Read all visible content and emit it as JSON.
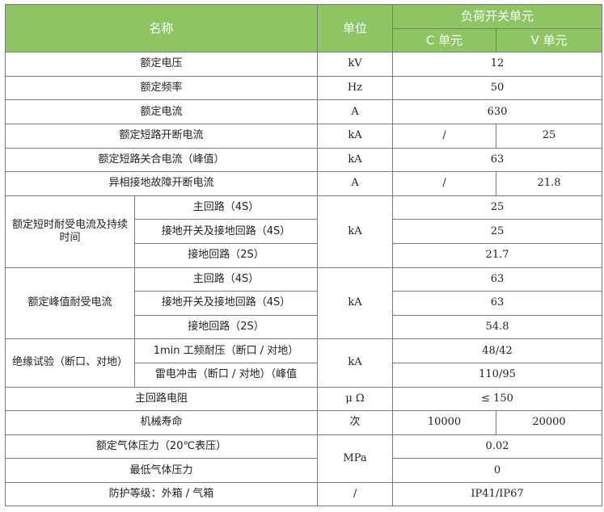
{
  "header": {
    "name": "名称",
    "unit": "单位",
    "group": "负荷开关单元",
    "c_unit": "C 单元",
    "v_unit": "V 单元"
  },
  "rows": [
    {
      "name": "额定电压",
      "unit": "kV",
      "value": "12"
    },
    {
      "name": "额定频率",
      "unit": "Hz",
      "value": "50"
    },
    {
      "name": "额定电流",
      "unit": "A",
      "value": "630"
    },
    {
      "name": "额定短路开断电流",
      "unit": "kA",
      "c": "/",
      "v": "25"
    },
    {
      "name": "额定短路关合电流（峰值）",
      "unit": "kA",
      "value": "63"
    },
    {
      "name": "异相接地故障开断电流",
      "unit": "A",
      "c": "/",
      "v": "21.8"
    }
  ],
  "short_time": {
    "name": "额定短时耐受电流及持续时间",
    "unit": "kA",
    "items": [
      {
        "sub": "主回路（4S）",
        "value": "25"
      },
      {
        "sub": "接地开关及接地回路（4S）",
        "value": "25"
      },
      {
        "sub": "接地回路（2S）",
        "value": "21.7"
      }
    ]
  },
  "peak": {
    "name": "额定峰值耐受电流",
    "unit": "kA",
    "items": [
      {
        "sub": "主回路（4S）",
        "value": "63"
      },
      {
        "sub": "接地开关及接地回路（4S）",
        "value": "63"
      },
      {
        "sub": "接地回路（2S）",
        "value": "54.8"
      }
    ]
  },
  "insulation": {
    "name": "绝缘试验（断口、对地）",
    "unit": "kA",
    "items": [
      {
        "sub": "1min 工频耐压（断口 / 对地）",
        "value": "48/42"
      },
      {
        "sub": "雷电冲击（断口 / 对地）（峰值",
        "value": "110/95"
      }
    ]
  },
  "resistance": {
    "name": "主回路电阻",
    "unit": "μ Ω",
    "value": "≤ 150"
  },
  "life": {
    "name": "机械寿命",
    "unit": "次",
    "c": "10000",
    "v": "20000"
  },
  "gas": {
    "unit": "MPa",
    "items": [
      {
        "name": "额定气体压力（20℃表压）",
        "value": "0.02"
      },
      {
        "name": "最低气体压力",
        "value": "0"
      }
    ]
  },
  "protection": {
    "name": "防护等级：外箱 / 气箱",
    "unit": "/",
    "value": "IP41/IP67"
  },
  "colors": {
    "header_bg": "#8dc563",
    "header_text": "#ffffff",
    "border": "#7a7a7a"
  }
}
